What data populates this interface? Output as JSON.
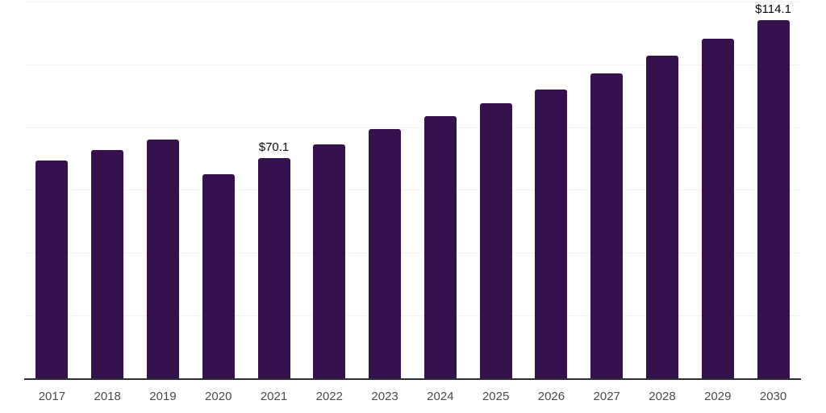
{
  "chart_data": {
    "type": "bar",
    "title": "",
    "xlabel": "",
    "ylabel": "",
    "categories": [
      "2017",
      "2018",
      "2019",
      "2020",
      "2021",
      "2022",
      "2023",
      "2024",
      "2025",
      "2026",
      "2027",
      "2028",
      "2029",
      "2030"
    ],
    "values": [
      69.3,
      72.6,
      76.0,
      64.9,
      70.1,
      74.6,
      79.3,
      83.4,
      87.5,
      92.1,
      97.2,
      102.7,
      108.2,
      114.1
    ],
    "data_labels": [
      "",
      "",
      "",
      "",
      "$70.1",
      "",
      "",
      "",
      "",
      "",
      "",
      "",
      "",
      "$114.1"
    ],
    "ylim": [
      0,
      120
    ],
    "gridline_step": 20,
    "grid": true,
    "legend": false,
    "colors": {
      "bar": "#35114E",
      "axis_line": "#2e2e2e",
      "gridline": "#f4f4f4",
      "x_label": "#4a4a4a",
      "data_label": "#0a0a0a",
      "background": "#ffffff"
    }
  }
}
